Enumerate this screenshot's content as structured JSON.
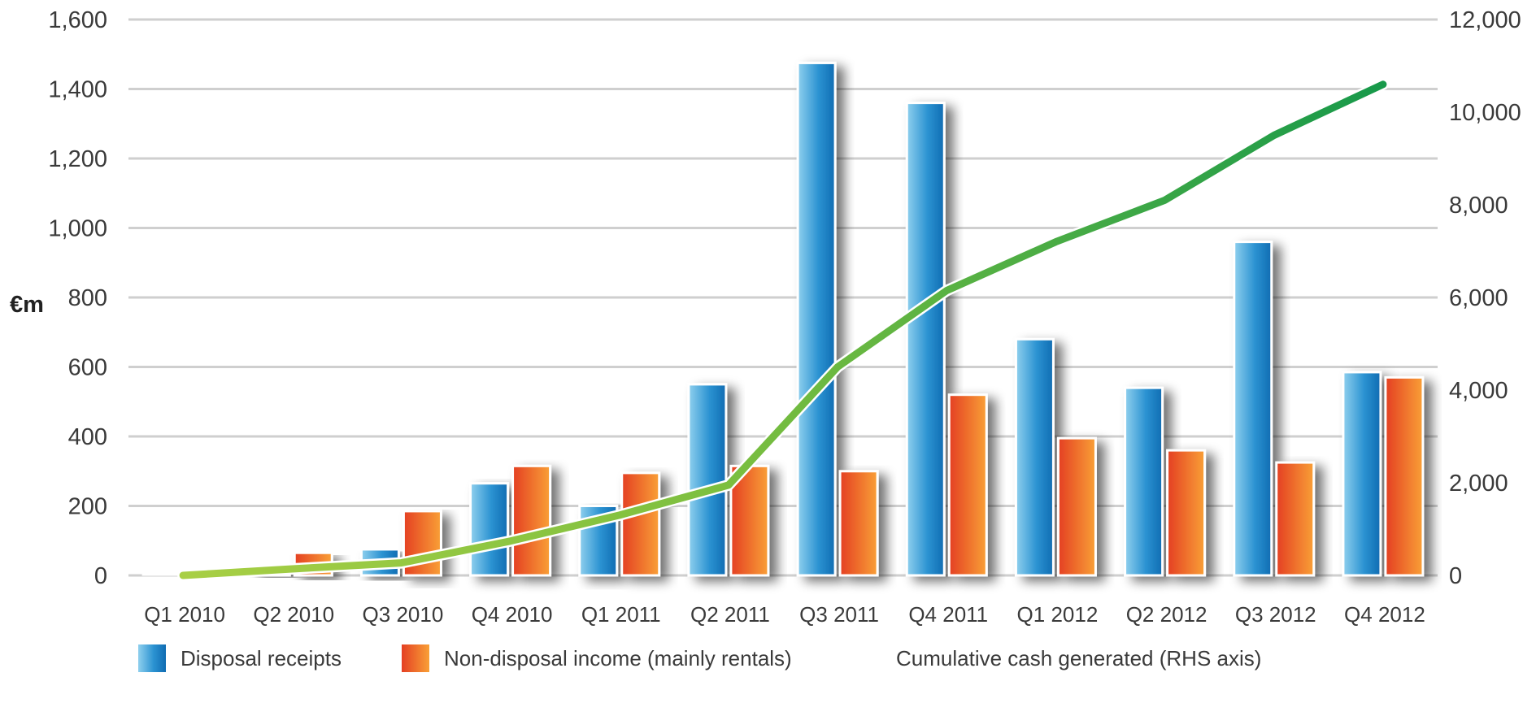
{
  "chart_data": {
    "type": "bar",
    "title": "",
    "xlabel": "",
    "ylabel": "€m",
    "ylim": [
      0,
      1600
    ],
    "y2lim": [
      0,
      12000
    ],
    "yticks": [
      "0",
      "200",
      "400",
      "600",
      "800",
      "1,000",
      "1,200",
      "1,400",
      "1,600"
    ],
    "y2ticks": [
      "0",
      "2,000",
      "4,000",
      "6,000",
      "8,000",
      "10,000",
      "12,000"
    ],
    "grid": true,
    "legend_position": "bottom",
    "categories": [
      "Q1 2010",
      "Q2 2010",
      "Q3 2010",
      "Q4 2010",
      "Q1 2011",
      "Q2 2011",
      "Q3 2011",
      "Q4 2011",
      "Q1 2012",
      "Q2 2012",
      "Q3 2012",
      "Q4 2012"
    ],
    "series": [
      {
        "name": "Disposal receipts",
        "kind": "bar",
        "axis": "left",
        "color": "#1a7cc1",
        "values": [
          5,
          30,
          75,
          265,
          200,
          550,
          1475,
          1360,
          680,
          540,
          960,
          585
        ]
      },
      {
        "name": "Non-disposal income (mainly rentals)",
        "kind": "bar",
        "axis": "left",
        "color": "#f05a28",
        "values": [
          5,
          65,
          185,
          315,
          295,
          315,
          300,
          520,
          395,
          360,
          325,
          570
        ]
      },
      {
        "name": "Cumulative cash generated (RHS axis)",
        "kind": "line",
        "axis": "right",
        "color": "#22a04b",
        "values": [
          0,
          140,
          270,
          740,
          1300,
          1950,
          4500,
          6150,
          7200,
          8100,
          9500,
          10600
        ]
      }
    ]
  }
}
